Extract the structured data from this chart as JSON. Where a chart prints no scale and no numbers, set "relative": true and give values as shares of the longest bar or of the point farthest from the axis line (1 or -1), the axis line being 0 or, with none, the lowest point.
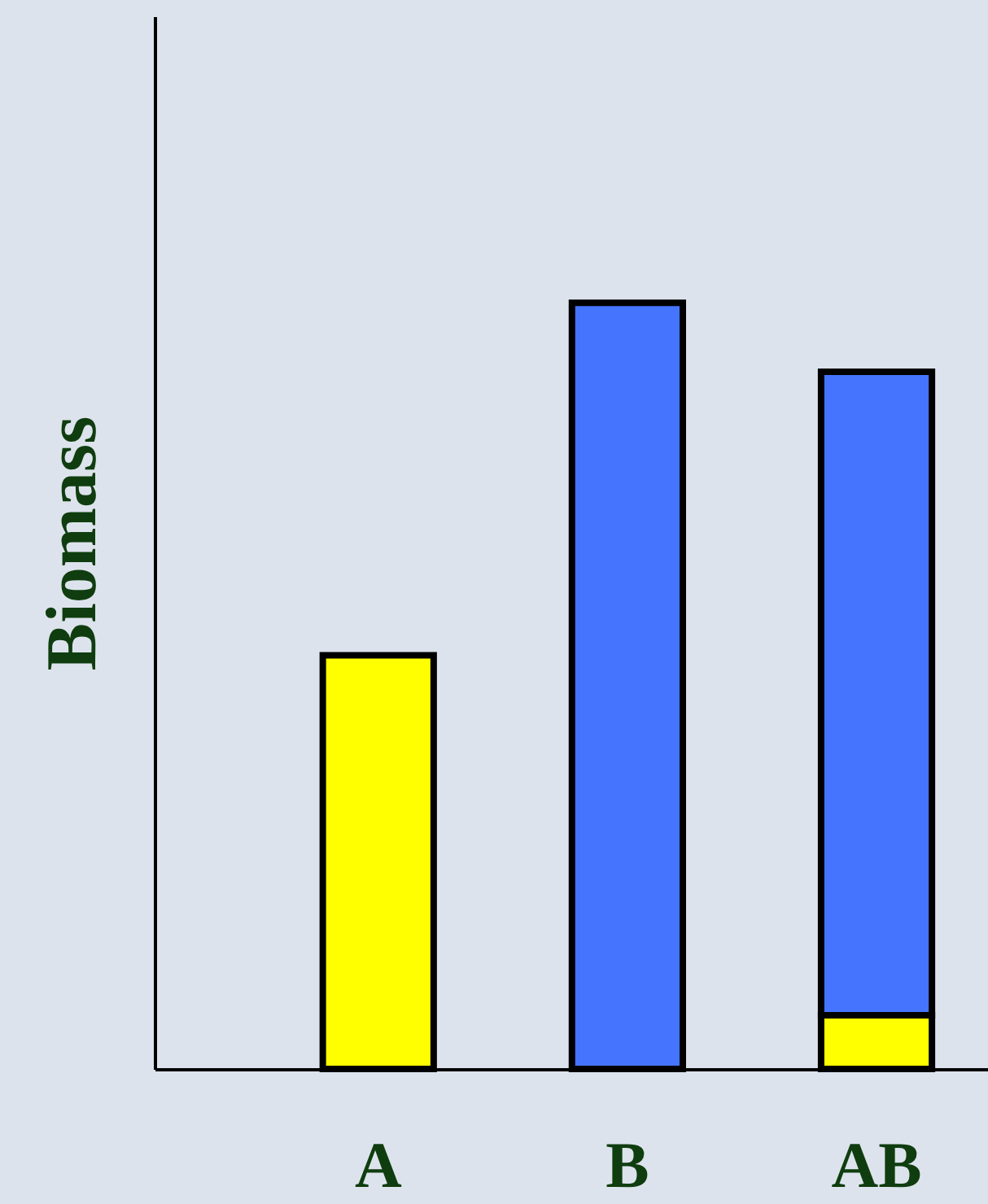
{
  "chart_data": {
    "type": "bar",
    "ylabel": "Biomass",
    "categories": [
      "A",
      "B",
      "AB"
    ],
    "relative": true,
    "stacked": true,
    "grid": false,
    "series": [
      {
        "color": "#ffff00",
        "values": [
          0.54,
          null,
          0.07
        ]
      },
      {
        "color": "#4575ff",
        "values": [
          null,
          1,
          0.84
        ]
      }
    ]
  }
}
